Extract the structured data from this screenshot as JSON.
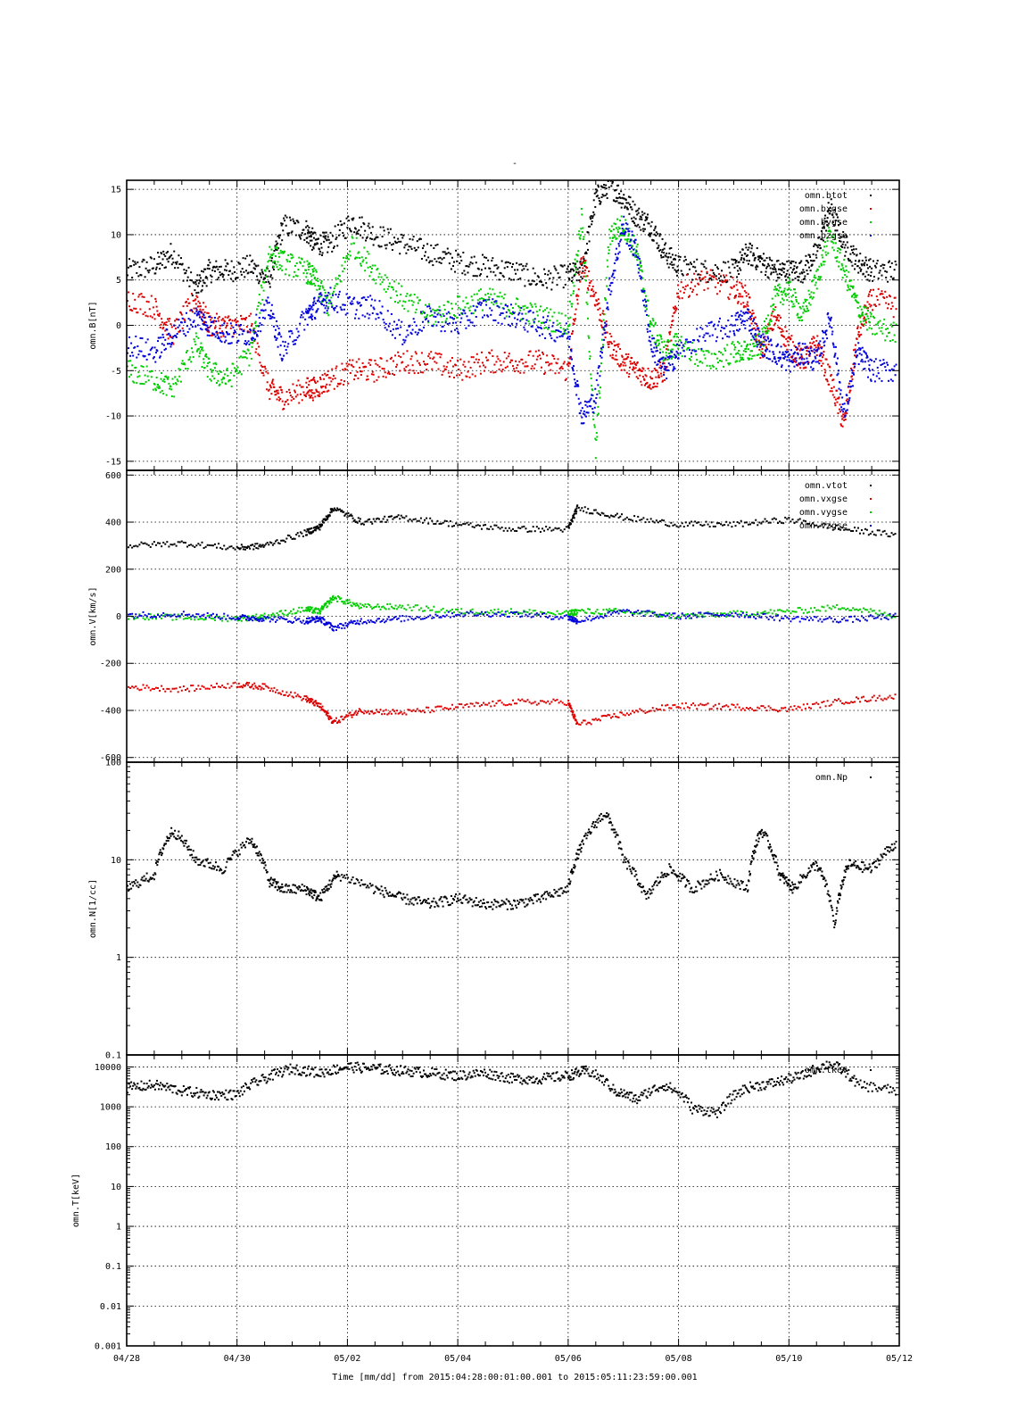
{
  "title": "-",
  "footer": {
    "label": "Time [mm/dd]  from 2015:04:28:00:01:00.001  to  2015:05:11:23:59:00.001"
  },
  "x_axis": {
    "range": [
      "2015-04-28T00:01:00",
      "2015-05-11T23:59:00"
    ],
    "tick_labels": [
      "04/28",
      "04/30",
      "05/02",
      "05/04",
      "05/06",
      "05/08",
      "05/10",
      "05/12"
    ],
    "tick_dates": [
      "2015-04-28",
      "2015-04-30",
      "2015-05-02",
      "2015-05-04",
      "2015-05-06",
      "2015-05-08",
      "2015-05-10",
      "2015-05-12"
    ],
    "minor_tick_hours": 12
  },
  "colors": {
    "black": "#000000",
    "red": "#dd0000",
    "green": "#00cc00",
    "blue": "#0000dd"
  },
  "chart_data": [
    {
      "type": "scatter",
      "ylabel": "omn.B[nT]",
      "yscale": "linear",
      "ylim": [
        -16,
        16
      ],
      "yticks": [
        -15,
        -10,
        -5,
        0,
        5,
        10,
        15
      ],
      "ytick_labels": [
        "-15",
        "-10",
        "-5",
        "0",
        "5",
        "10",
        "15"
      ],
      "grid": true,
      "legend_position": "top-right",
      "series": [
        {
          "name": "omn.btot",
          "color": "#000000",
          "x": [
            "2015-04-28T00:00",
            "2015-04-28T12:00",
            "2015-04-28T20:00",
            "2015-04-29T06:00",
            "2015-04-29T12:00",
            "2015-04-29T20:00",
            "2015-04-30T06:00",
            "2015-04-30T14:00",
            "2015-04-30T20:00",
            "2015-05-01T06:00",
            "2015-05-01T10:00",
            "2015-05-01T16:00",
            "2015-05-02T02:00",
            "2015-05-02T12:00",
            "2015-05-03T00:00",
            "2015-05-03T12:00",
            "2015-05-04T00:00",
            "2015-05-04T12:00",
            "2015-05-05T00:00",
            "2015-05-05T12:00",
            "2015-05-06T00:00",
            "2015-05-06T06:00",
            "2015-05-06T12:00",
            "2015-05-06T18:00",
            "2015-05-07T00:00",
            "2015-05-07T06:00",
            "2015-05-07T12:00",
            "2015-05-07T18:00",
            "2015-05-08T00:00",
            "2015-05-08T12:00",
            "2015-05-09T00:00",
            "2015-05-09T06:00",
            "2015-05-09T12:00",
            "2015-05-09T18:00",
            "2015-05-10T00:00",
            "2015-05-10T06:00",
            "2015-05-10T12:00",
            "2015-05-10T18:00",
            "2015-05-11T00:00",
            "2015-05-11T06:00",
            "2015-05-11T12:00",
            "2015-05-11T23:00"
          ],
          "y": [
            6,
            6.5,
            8,
            4,
            6,
            6,
            6.5,
            5,
            11,
            10.5,
            9,
            9,
            11.5,
            10,
            9,
            8,
            7,
            6.5,
            6,
            5,
            5.5,
            6,
            14,
            15.5,
            14,
            12,
            11,
            8,
            6.5,
            6,
            6,
            8,
            7,
            6,
            6,
            6,
            8,
            13,
            9,
            7,
            6,
            6
          ]
        },
        {
          "name": "omn.bxgse",
          "color": "#dd0000",
          "x": [
            "2015-04-28T00:00",
            "2015-04-28T12:00",
            "2015-04-28T20:00",
            "2015-04-29T06:00",
            "2015-04-29T12:00",
            "2015-04-29T20:00",
            "2015-04-30T06:00",
            "2015-04-30T14:00",
            "2015-04-30T20:00",
            "2015-05-01T06:00",
            "2015-05-01T10:00",
            "2015-05-01T16:00",
            "2015-05-02T02:00",
            "2015-05-02T12:00",
            "2015-05-03T00:00",
            "2015-05-03T12:00",
            "2015-05-04T00:00",
            "2015-05-04T12:00",
            "2015-05-05T00:00",
            "2015-05-05T12:00",
            "2015-05-06T00:00",
            "2015-05-06T06:00",
            "2015-05-06T12:00",
            "2015-05-06T18:00",
            "2015-05-07T00:00",
            "2015-05-07T06:00",
            "2015-05-07T12:00",
            "2015-05-07T18:00",
            "2015-05-08T00:00",
            "2015-05-08T12:00",
            "2015-05-09T00:00",
            "2015-05-09T06:00",
            "2015-05-09T12:00",
            "2015-05-09T18:00",
            "2015-05-10T00:00",
            "2015-05-10T06:00",
            "2015-05-10T12:00",
            "2015-05-10T18:00",
            "2015-05-11T00:00",
            "2015-05-11T06:00",
            "2015-05-11T12:00",
            "2015-05-11T23:00"
          ],
          "y": [
            3,
            2,
            -1,
            3,
            0,
            0,
            0,
            -7,
            -8,
            -7,
            -7,
            -6,
            -5,
            -5,
            -4,
            -4,
            -5,
            -4,
            -4,
            -4,
            -5,
            7,
            3,
            -2,
            -4,
            -5,
            -6,
            -5,
            4,
            5,
            4,
            3,
            -3,
            1,
            -2,
            -4,
            -2,
            -6,
            -11,
            -1,
            3,
            2
          ]
        },
        {
          "name": "omn.bygse",
          "color": "#00cc00",
          "x": [
            "2015-04-28T00:00",
            "2015-04-28T12:00",
            "2015-04-28T20:00",
            "2015-04-29T06:00",
            "2015-04-29T12:00",
            "2015-04-29T20:00",
            "2015-04-30T06:00",
            "2015-04-30T14:00",
            "2015-04-30T20:00",
            "2015-05-01T06:00",
            "2015-05-01T10:00",
            "2015-05-01T16:00",
            "2015-05-02T02:00",
            "2015-05-02T12:00",
            "2015-05-03T00:00",
            "2015-05-03T12:00",
            "2015-05-04T00:00",
            "2015-05-04T12:00",
            "2015-05-05T00:00",
            "2015-05-05T12:00",
            "2015-05-06T00:00",
            "2015-05-06T06:00",
            "2015-05-06T12:00",
            "2015-05-06T18:00",
            "2015-05-07T00:00",
            "2015-05-07T06:00",
            "2015-05-07T12:00",
            "2015-05-07T18:00",
            "2015-05-08T00:00",
            "2015-05-08T12:00",
            "2015-05-09T00:00",
            "2015-05-09T06:00",
            "2015-05-09T12:00",
            "2015-05-09T18:00",
            "2015-05-10T00:00",
            "2015-05-10T06:00",
            "2015-05-10T12:00",
            "2015-05-10T18:00",
            "2015-05-11T00:00",
            "2015-05-11T06:00",
            "2015-05-11T12:00",
            "2015-05-11T23:00"
          ],
          "y": [
            -5,
            -6,
            -7,
            -2,
            -5,
            -6,
            -3,
            8,
            7,
            6,
            5,
            2,
            9,
            6,
            3,
            1,
            2,
            3,
            2,
            1,
            0,
            12,
            -14,
            10,
            11,
            8,
            0,
            -3,
            -2,
            -4,
            -3,
            -3,
            -2,
            3,
            4,
            1,
            5,
            10,
            6,
            2,
            0,
            -1
          ]
        },
        {
          "name": "omn.bzgse",
          "color": "#0000dd",
          "x": [
            "2015-04-28T00:00",
            "2015-04-28T12:00",
            "2015-04-28T20:00",
            "2015-04-29T06:00",
            "2015-04-29T12:00",
            "2015-04-29T20:00",
            "2015-04-30T06:00",
            "2015-04-30T14:00",
            "2015-04-30T20:00",
            "2015-05-01T06:00",
            "2015-05-01T10:00",
            "2015-05-01T16:00",
            "2015-05-02T02:00",
            "2015-05-02T12:00",
            "2015-05-03T00:00",
            "2015-05-03T12:00",
            "2015-05-04T00:00",
            "2015-05-04T12:00",
            "2015-05-05T00:00",
            "2015-05-05T12:00",
            "2015-05-06T00:00",
            "2015-05-06T06:00",
            "2015-05-06T12:00",
            "2015-05-06T18:00",
            "2015-05-07T00:00",
            "2015-05-07T06:00",
            "2015-05-07T12:00",
            "2015-05-07T18:00",
            "2015-05-08T00:00",
            "2015-05-08T12:00",
            "2015-05-09T00:00",
            "2015-05-09T06:00",
            "2015-05-09T12:00",
            "2015-05-09T18:00",
            "2015-05-10T00:00",
            "2015-05-10T06:00",
            "2015-05-10T12:00",
            "2015-05-10T18:00",
            "2015-05-11T00:00",
            "2015-05-11T06:00",
            "2015-05-11T12:00",
            "2015-05-11T23:00"
          ],
          "y": [
            -2,
            -3,
            -1,
            1,
            0,
            -1,
            -1,
            2,
            -3,
            1,
            2,
            3,
            2,
            2,
            -1,
            1,
            0,
            2,
            1,
            0,
            -1,
            -10,
            -8,
            4,
            11,
            8,
            -2,
            -5,
            -3,
            -1,
            0,
            1,
            -2,
            -3,
            -4,
            -3,
            -4,
            1,
            -10,
            -3,
            -5,
            -5
          ]
        }
      ],
      "legend": [
        "omn.btot",
        "omn.bxgse",
        "omn.bygse",
        "omn.bzgse"
      ]
    },
    {
      "type": "scatter",
      "ylabel": "omn.V[km/s]",
      "yscale": "linear",
      "ylim": [
        -620,
        620
      ],
      "yticks": [
        -600,
        -400,
        -200,
        0,
        200,
        400,
        600
      ],
      "ytick_labels": [
        "-600",
        "-400",
        "-200",
        "0",
        "200",
        "400",
        "600"
      ],
      "grid": true,
      "legend_position": "top-right",
      "series": [
        {
          "name": "omn.vtot",
          "color": "#000000",
          "x": [
            "2015-04-28T00:00",
            "2015-04-29T00:00",
            "2015-04-30T00:00",
            "2015-04-30T12:00",
            "2015-05-01T06:00",
            "2015-05-01T12:00",
            "2015-05-01T18:00",
            "2015-05-02T06:00",
            "2015-05-03T00:00",
            "2015-05-04T00:00",
            "2015-05-05T00:00",
            "2015-05-06T00:00",
            "2015-05-06T04:00",
            "2015-05-07T00:00",
            "2015-05-08T00:00",
            "2015-05-09T00:00",
            "2015-05-10T00:00",
            "2015-05-11T00:00",
            "2015-05-11T23:00"
          ],
          "y": [
            300,
            310,
            290,
            300,
            355,
            380,
            460,
            400,
            420,
            390,
            370,
            370,
            460,
            420,
            390,
            390,
            410,
            370,
            345
          ]
        },
        {
          "name": "omn.vxgse",
          "color": "#dd0000",
          "x": [
            "2015-04-28T00:00",
            "2015-04-29T00:00",
            "2015-04-30T00:00",
            "2015-04-30T12:00",
            "2015-05-01T06:00",
            "2015-05-01T12:00",
            "2015-05-01T18:00",
            "2015-05-02T06:00",
            "2015-05-03T00:00",
            "2015-05-04T00:00",
            "2015-05-05T00:00",
            "2015-05-06T00:00",
            "2015-05-06T04:00",
            "2015-05-07T00:00",
            "2015-05-08T00:00",
            "2015-05-09T00:00",
            "2015-05-10T00:00",
            "2015-05-11T00:00",
            "2015-05-11T23:00"
          ],
          "y": [
            -300,
            -310,
            -290,
            -300,
            -350,
            -380,
            -450,
            -400,
            -410,
            -385,
            -365,
            -365,
            -460,
            -415,
            -380,
            -385,
            -395,
            -360,
            -340
          ]
        },
        {
          "name": "omn.vygse",
          "color": "#00cc00",
          "x": [
            "2015-04-28T00:00",
            "2015-04-29T00:00",
            "2015-04-30T00:00",
            "2015-04-30T12:00",
            "2015-05-01T06:00",
            "2015-05-01T12:00",
            "2015-05-01T18:00",
            "2015-05-02T06:00",
            "2015-05-03T00:00",
            "2015-05-04T00:00",
            "2015-05-05T00:00",
            "2015-05-06T00:00",
            "2015-05-06T04:00",
            "2015-05-07T00:00",
            "2015-05-08T00:00",
            "2015-05-09T00:00",
            "2015-05-10T00:00",
            "2015-05-11T00:00",
            "2015-05-11T23:00"
          ],
          "y": [
            0,
            -5,
            -10,
            0,
            30,
            20,
            80,
            40,
            40,
            20,
            20,
            10,
            20,
            20,
            0,
            10,
            20,
            40,
            0
          ]
        },
        {
          "name": "omn.vzgse",
          "color": "#0000dd",
          "x": [
            "2015-04-28T00:00",
            "2015-04-29T00:00",
            "2015-04-30T00:00",
            "2015-04-30T12:00",
            "2015-05-01T06:00",
            "2015-05-01T12:00",
            "2015-05-01T18:00",
            "2015-05-02T06:00",
            "2015-05-03T00:00",
            "2015-05-04T00:00",
            "2015-05-05T00:00",
            "2015-05-06T00:00",
            "2015-05-06T04:00",
            "2015-05-07T00:00",
            "2015-05-08T00:00",
            "2015-05-09T00:00",
            "2015-05-10T00:00",
            "2015-05-11T00:00",
            "2015-05-11T23:00"
          ],
          "y": [
            5,
            10,
            -5,
            -10,
            -20,
            -10,
            -50,
            -20,
            -10,
            10,
            10,
            -5,
            -20,
            20,
            0,
            10,
            -10,
            -15,
            0
          ]
        }
      ],
      "legend": [
        "omn.vtot",
        "omn.vxgse",
        "omn.vygse",
        "omn.vzgse"
      ]
    },
    {
      "type": "scatter",
      "ylabel": "omn.N[1/cc]",
      "yscale": "log",
      "ylim": [
        0.1,
        100
      ],
      "yticks": [
        0.1,
        1,
        10,
        100
      ],
      "ytick_labels": [
        "0.1",
        "1",
        "10",
        "100"
      ],
      "grid": true,
      "legend_position": "top-right",
      "series": [
        {
          "name": "omn.Np",
          "color": "#000000",
          "x": [
            "2015-04-28T00:00",
            "2015-04-28T12:00",
            "2015-04-28T20:00",
            "2015-04-29T06:00",
            "2015-04-29T18:00",
            "2015-04-30T06:00",
            "2015-04-30T14:00",
            "2015-04-30T20:00",
            "2015-05-01T06:00",
            "2015-05-01T12:00",
            "2015-05-01T20:00",
            "2015-05-02T12:00",
            "2015-05-03T00:00",
            "2015-05-03T12:00",
            "2015-05-04T00:00",
            "2015-05-04T12:00",
            "2015-05-05T00:00",
            "2015-05-05T12:00",
            "2015-05-06T00:00",
            "2015-05-06T06:00",
            "2015-05-06T16:00",
            "2015-05-07T00:00",
            "2015-05-07T10:00",
            "2015-05-07T20:00",
            "2015-05-08T06:00",
            "2015-05-08T18:00",
            "2015-05-09T06:00",
            "2015-05-09T12:00",
            "2015-05-09T20:00",
            "2015-05-10T02:00",
            "2015-05-10T12:00",
            "2015-05-10T20:00",
            "2015-05-11T02:00",
            "2015-05-11T12:00",
            "2015-05-11T23:00"
          ],
          "y": [
            5,
            7,
            20,
            10,
            8,
            16,
            6,
            5,
            5,
            4,
            7,
            5,
            4,
            3.5,
            4,
            3.5,
            3.5,
            4,
            5,
            14,
            30,
            10,
            4,
            8,
            5,
            7,
            5,
            20,
            7,
            5,
            9,
            2,
            9,
            8,
            15
          ]
        }
      ],
      "legend": [
        "omn.Np"
      ]
    },
    {
      "type": "scatter",
      "ylabel": "omn.T[keV]",
      "yscale": "log",
      "ylim": [
        0.001,
        20000
      ],
      "yticks": [
        0.001,
        0.01,
        0.1,
        1,
        10,
        100,
        1000,
        10000
      ],
      "ytick_labels": [
        "0.001",
        "0.01",
        "0.1",
        "1",
        "10",
        "100",
        "1000",
        "10000"
      ],
      "grid": true,
      "legend_position": "top-right",
      "series": [
        {
          "name": "omn.tkev",
          "color": "#000000",
          "x": [
            "2015-04-28T00:00",
            "2015-04-28T12:00",
            "2015-04-29T00:00",
            "2015-04-29T12:00",
            "2015-04-30T00:00",
            "2015-04-30T12:00",
            "2015-05-01T00:00",
            "2015-05-01T12:00",
            "2015-05-02T00:00",
            "2015-05-02T12:00",
            "2015-05-03T00:00",
            "2015-05-03T12:00",
            "2015-05-04T00:00",
            "2015-05-04T12:00",
            "2015-05-05T00:00",
            "2015-05-05T12:00",
            "2015-05-06T00:00",
            "2015-05-06T08:00",
            "2015-05-06T20:00",
            "2015-05-07T06:00",
            "2015-05-07T18:00",
            "2015-05-08T06:00",
            "2015-05-08T18:00",
            "2015-05-09T06:00",
            "2015-05-09T18:00",
            "2015-05-10T06:00",
            "2015-05-10T18:00",
            "2015-05-11T06:00",
            "2015-05-11T23:00"
          ],
          "y": [
            3000,
            3500,
            2500,
            2000,
            2000,
            5000,
            9000,
            7000,
            10000,
            9000,
            8000,
            7000,
            6000,
            7000,
            5000,
            5000,
            6000,
            8000,
            2500,
            1500,
            3500,
            900,
            700,
            3000,
            4000,
            6000,
            12000,
            3500,
            2500
          ]
        }
      ],
      "legend": [
        "omn.tkev"
      ]
    }
  ]
}
